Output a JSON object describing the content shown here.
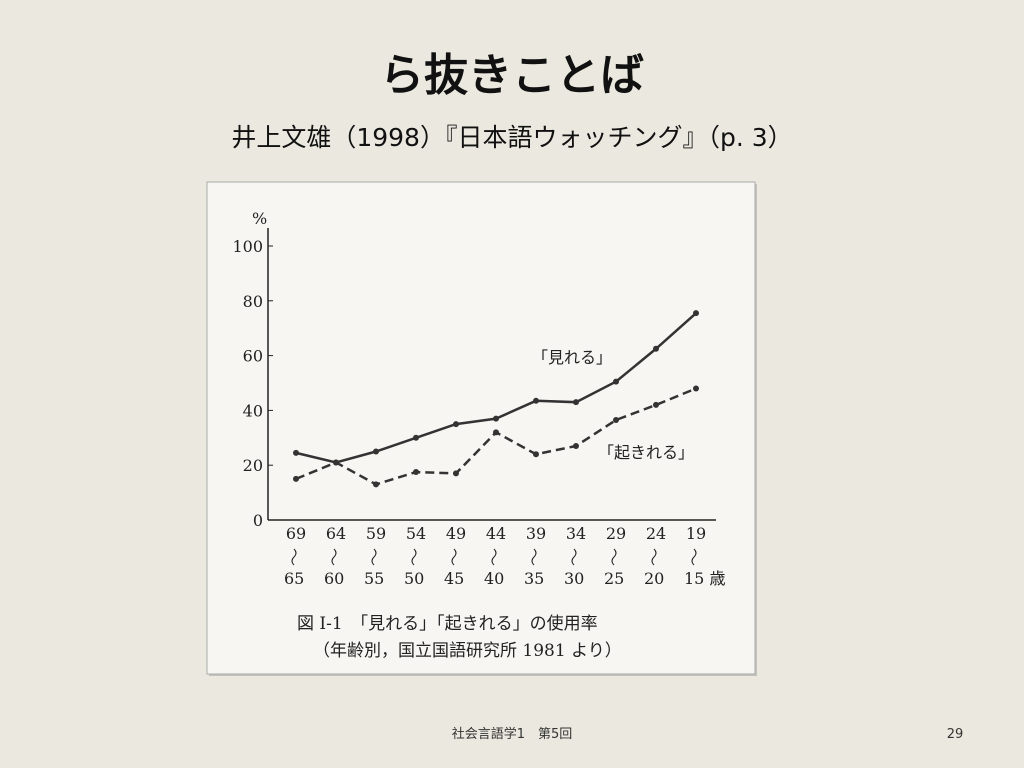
{
  "slide": {
    "title": "ら抜きことば",
    "subtitle": "井上文雄（1998）『日本語ウォッチング』（p. 3）",
    "footer": "社会言語学1　第5回",
    "page_number": "29"
  },
  "chart_data": {
    "type": "line",
    "y_unit_label": "%",
    "categories": [
      [
        "69",
        "65"
      ],
      [
        "64",
        "60"
      ],
      [
        "59",
        "55"
      ],
      [
        "54",
        "50"
      ],
      [
        "49",
        "45"
      ],
      [
        "44",
        "40"
      ],
      [
        "39",
        "35"
      ],
      [
        "34",
        "30"
      ],
      [
        "29",
        "25"
      ],
      [
        "24",
        "20"
      ],
      [
        "19",
        "15 歳"
      ]
    ],
    "series": [
      {
        "name": "「見れる」",
        "color": "#333333",
        "line_style": "solid",
        "values": [
          24.5,
          21,
          25,
          30,
          35,
          37,
          43.5,
          43,
          50.5,
          62.5,
          75.5
        ]
      },
      {
        "name": "「起きれる」",
        "color": "#333333",
        "line_style": "dashed",
        "values": [
          15,
          21,
          13,
          17.5,
          17,
          32,
          24,
          27,
          36.5,
          42,
          48
        ]
      }
    ],
    "ylim": [
      0,
      100
    ],
    "yticks": [
      0,
      20,
      40,
      60,
      80,
      100
    ],
    "caption": "図 I-1　「見れる」「起きれる」の使用率",
    "source": "（年齢別，国立国語研究所 1981 より）"
  }
}
